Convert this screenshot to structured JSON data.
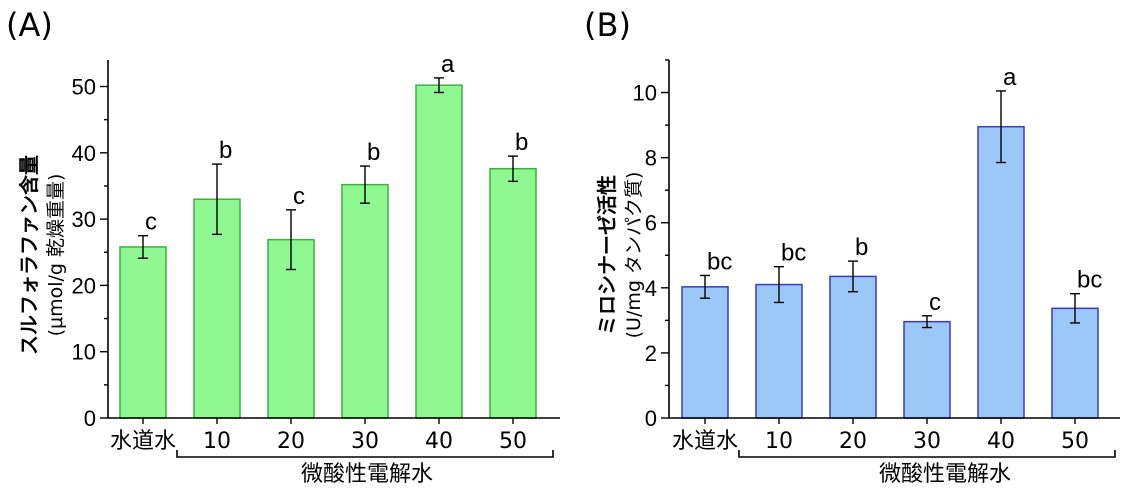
{
  "panels": [
    {
      "panel_label": "(A)",
      "ylabel_line1": "スルフォラファン含量",
      "ylabel_line2": "(μmol/g 乾燥重量)",
      "group_label": "微酸性電解水",
      "colors": {
        "fill": "#90f890",
        "stroke": "#3cb043"
      }
    },
    {
      "panel_label": "(B)",
      "ylabel_line1": "ミロシナーゼ活性",
      "ylabel_line2": "(U/mg タンパク質)",
      "group_label": "微酸性電解水",
      "colors": {
        "fill": "#9cc8f8",
        "stroke": "#3a3ac8"
      }
    }
  ],
  "chart_data": [
    {
      "type": "bar",
      "title": "",
      "xlabel": "微酸性電解水",
      "ylabel": "スルフォラファン含量 (μmol/g 乾燥重量)",
      "categories": [
        "水道水",
        "10",
        "20",
        "30",
        "40",
        "50"
      ],
      "values": [
        25.8,
        33.0,
        26.9,
        35.2,
        50.2,
        37.6
      ],
      "error": [
        1.7,
        5.3,
        4.5,
        2.8,
        1.1,
        1.9
      ],
      "significance": [
        "c",
        "b",
        "c",
        "b",
        "a",
        "b"
      ],
      "ylim": [
        0,
        54
      ],
      "yticks": [
        0,
        10,
        20,
        30,
        40,
        50
      ],
      "grid": false
    },
    {
      "type": "bar",
      "title": "",
      "xlabel": "微酸性電解水",
      "ylabel": "ミロシナーゼ活性 (U/mg タンパク質)",
      "categories": [
        "水道水",
        "10",
        "20",
        "30",
        "40",
        "50"
      ],
      "values": [
        4.03,
        4.1,
        4.35,
        2.96,
        8.95,
        3.37
      ],
      "error": [
        0.35,
        0.55,
        0.47,
        0.18,
        1.1,
        0.45
      ],
      "significance": [
        "bc",
        "bc",
        "b",
        "c",
        "a",
        "bc"
      ],
      "ylim": [
        0,
        11
      ],
      "yticks": [
        0,
        2,
        4,
        6,
        8,
        10
      ],
      "grid": false
    }
  ]
}
